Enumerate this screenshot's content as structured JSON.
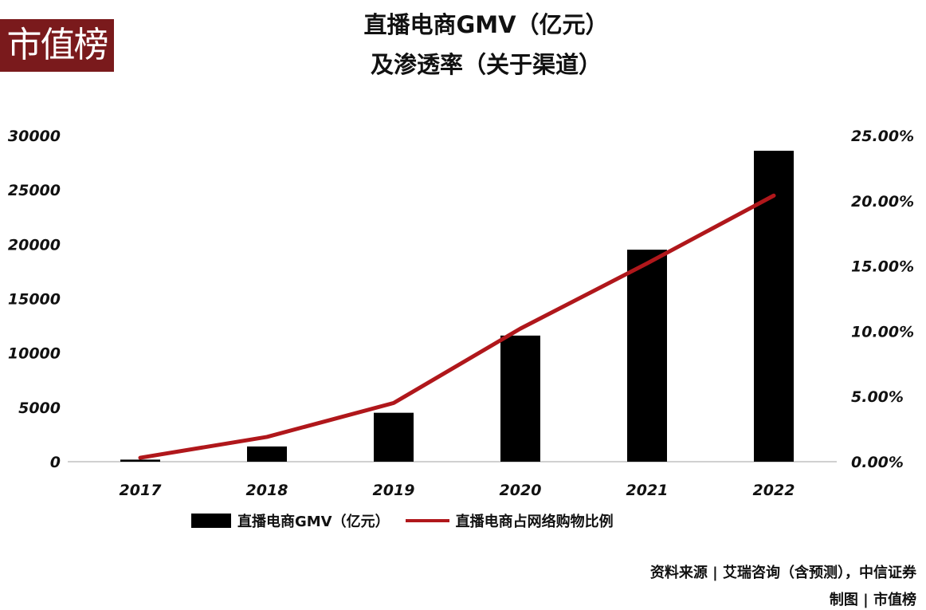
{
  "logo": "市值榜",
  "title_line1": "直播电商GMV（亿元）",
  "title_line2": "及渗透率（关于渠道）",
  "source_line1": "资料来源 | 艾瑞咨询（含预测），中信证券",
  "source_line2": "制图 | 市值榜",
  "colors": {
    "bar": "#000000",
    "line": "#b0171b",
    "logo_bg": "#7a1a1c"
  },
  "chart_data": {
    "type": "bar+line",
    "title": "直播电商GMV（亿元）及渗透率（关于渠道）",
    "categories": [
      "2017",
      "2018",
      "2019",
      "2020",
      "2021",
      "2022"
    ],
    "series": [
      {
        "name": "直播电商GMV（亿元）",
        "type": "bar",
        "axis": "left",
        "values": [
          190,
          1400,
          4500,
          11600,
          19500,
          28600
        ]
      },
      {
        "name": "直播电商占网络购物比例",
        "type": "line",
        "axis": "right",
        "values": [
          0.3,
          1.9,
          4.5,
          10.2,
          15.2,
          20.4
        ]
      }
    ],
    "y_left": {
      "ylim": [
        0,
        30000
      ],
      "ticks": [
        "0",
        "5000",
        "10000",
        "15000",
        "20000",
        "25000",
        "30000"
      ]
    },
    "y_right": {
      "ylim": [
        0,
        25
      ],
      "ticks": [
        "0.00%",
        "5.00%",
        "10.00%",
        "15.00%",
        "20.00%",
        "25.00%"
      ]
    },
    "grid": false,
    "legend": "bottom"
  }
}
